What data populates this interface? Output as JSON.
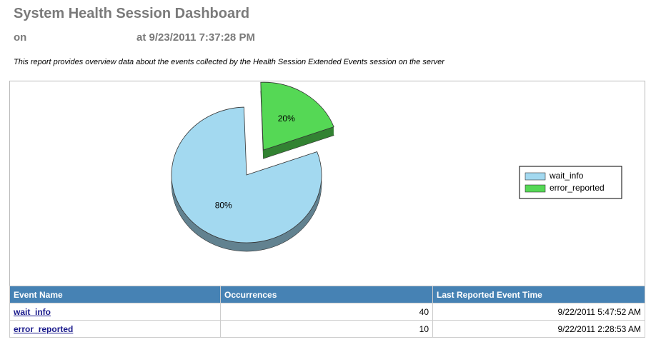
{
  "header": {
    "title": "System Health Session Dashboard",
    "on": "on",
    "at": "at 9/23/2011 7:37:28 PM",
    "description": "This report provides overview data about the events collected by the Health Session Extended Events session on the server"
  },
  "chart_data": {
    "type": "pie",
    "categories": [
      "wait_info",
      "error_reported"
    ],
    "values": [
      80,
      20
    ],
    "value_labels": [
      "80%",
      "20%"
    ],
    "colors": [
      "#a3d9f0",
      "#55d855"
    ],
    "legend": "right"
  },
  "table": {
    "columns": [
      "Event Name",
      "Occurrences",
      "Last Reported Event Time"
    ],
    "rows": [
      [
        "wait_info",
        40,
        "9/22/2011 5:47:52 AM"
      ],
      [
        "error_reported",
        10,
        "9/22/2011 2:28:53 AM"
      ]
    ]
  }
}
